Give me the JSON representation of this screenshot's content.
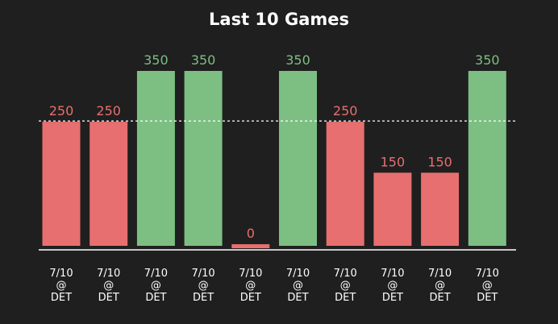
{
  "chart_data": {
    "type": "bar",
    "title": "Last 10 Games",
    "xlabel": "",
    "ylabel": "",
    "categories": [
      [
        "7/10",
        "@",
        "DET"
      ],
      [
        "7/10",
        "@",
        "DET"
      ],
      [
        "7/10",
        "@",
        "DET"
      ],
      [
        "7/10",
        "@",
        "DET"
      ],
      [
        "7/10",
        "@",
        "DET"
      ],
      [
        "7/10",
        "@",
        "DET"
      ],
      [
        "7/10",
        "@",
        "DET"
      ],
      [
        "7/10",
        "@",
        "DET"
      ],
      [
        "7/10",
        "@",
        "DET"
      ],
      [
        "7/10",
        "@",
        "DET"
      ]
    ],
    "values": [
      250,
      250,
      350,
      350,
      0,
      350,
      250,
      150,
      150,
      350
    ],
    "value_labels": [
      "250",
      "250",
      "350",
      "350",
      "0",
      "350",
      "250",
      "150",
      "150",
      "350"
    ],
    "reference_line": 250,
    "ylim": [
      0,
      350
    ],
    "zero_bar_stub": 8,
    "colors": {
      "background": "#1f1f1f",
      "over": "#7dbf83",
      "under": "#e86f6f",
      "over_label": "#7dbf83",
      "under_label": "#e86f6f",
      "axis": "#ffffff",
      "reference_line": "#ffffff"
    },
    "grid": false,
    "legend": "none"
  }
}
